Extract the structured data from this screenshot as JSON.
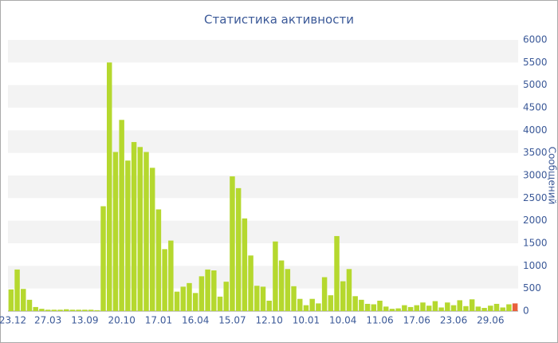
{
  "chart_data": {
    "type": "bar",
    "title": "Статистика активности",
    "y_label": "Сообщений",
    "categories": [
      "23.12",
      null,
      null,
      null,
      null,
      null,
      "27.03",
      null,
      null,
      null,
      null,
      null,
      "13.09",
      null,
      null,
      null,
      null,
      null,
      "20.10",
      null,
      null,
      null,
      null,
      null,
      "17.01",
      null,
      null,
      null,
      null,
      null,
      "16.04",
      null,
      null,
      null,
      null,
      null,
      "15.07",
      null,
      null,
      null,
      null,
      null,
      "12.10",
      null,
      null,
      null,
      null,
      null,
      "10.01",
      null,
      null,
      null,
      null,
      null,
      "10.04",
      null,
      null,
      null,
      null,
      null,
      "11.06",
      null,
      null,
      null,
      null,
      null,
      "17.06",
      null,
      null,
      null,
      null,
      null,
      "23.06",
      null,
      null,
      null,
      null,
      null,
      "29.06",
      null,
      null,
      null,
      null
    ],
    "values": [
      480,
      920,
      490,
      250,
      90,
      50,
      30,
      30,
      30,
      40,
      30,
      30,
      30,
      30,
      20,
      2320,
      5500,
      3520,
      4230,
      3330,
      3740,
      3630,
      3520,
      3170,
      2250,
      1370,
      1560,
      430,
      540,
      620,
      400,
      770,
      920,
      900,
      320,
      650,
      2980,
      2720,
      2050,
      1230,
      560,
      540,
      230,
      1540,
      1120,
      930,
      550,
      270,
      130,
      270,
      170,
      750,
      350,
      1660,
      660,
      930,
      330,
      250,
      160,
      150,
      230,
      100,
      50,
      60,
      130,
      90,
      130,
      190,
      120,
      220,
      80,
      190,
      130,
      240,
      110,
      260,
      100,
      70,
      120,
      160,
      80,
      150,
      170
    ],
    "color": "#b5d82e",
    "last_color": "#e8603c",
    "ylim": [
      0,
      6000
    ],
    "yticks": [
      0,
      500,
      1000,
      1500,
      2000,
      2500,
      3000,
      3500,
      4000,
      4500,
      5000,
      5500,
      6000
    ],
    "grid": true,
    "y_axis_side": "right"
  }
}
